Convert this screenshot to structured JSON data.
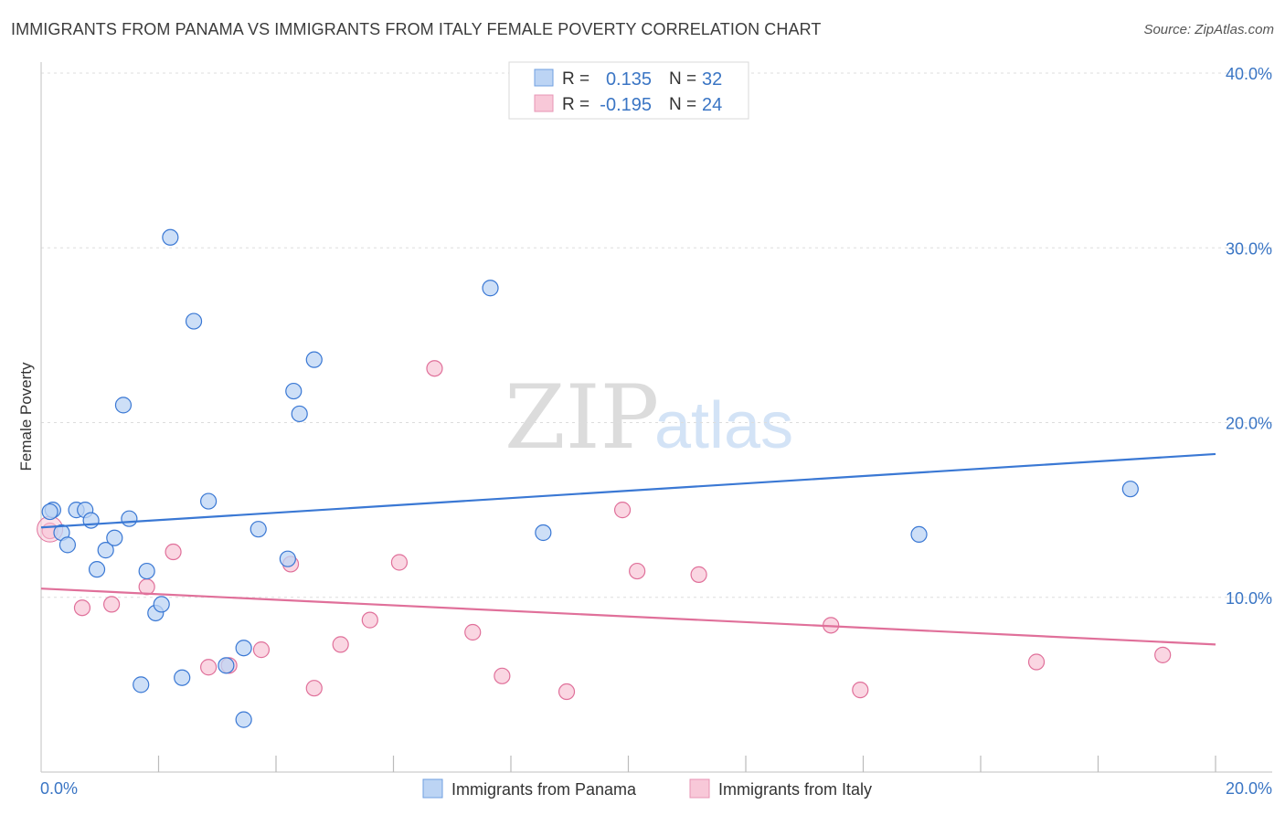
{
  "title": "IMMIGRANTS FROM PANAMA VS IMMIGRANTS FROM ITALY FEMALE POVERTY CORRELATION CHART",
  "source": "Source: ZipAtlas.com",
  "watermark": {
    "part1": "ZIP",
    "part2": "atlas"
  },
  "colors": {
    "panama": "#3a78d4",
    "panama_fill": "#bcd4f4",
    "italy": "#e0709a",
    "italy_fill": "#f8c8d8",
    "grid": "#dddddd",
    "tick_text": "#3a75c4"
  },
  "legend": {
    "r_label": "R =",
    "n_label": "N =",
    "rows": [
      {
        "r": "0.135",
        "n": "32"
      },
      {
        "r": "-0.195",
        "n": "24"
      }
    ]
  },
  "chart_data": {
    "type": "scatter",
    "title": "IMMIGRANTS FROM PANAMA VS IMMIGRANTS FROM ITALY FEMALE POVERTY CORRELATION CHART",
    "xlabel": "",
    "ylabel": "Female Poverty",
    "xlim": [
      0,
      20
    ],
    "ylim": [
      0,
      40
    ],
    "x_tick_labels": [
      "0.0%",
      "20.0%"
    ],
    "y_ticks": [
      10,
      20,
      30,
      40
    ],
    "y_tick_labels": [
      "10.0%",
      "20.0%",
      "30.0%",
      "40.0%"
    ],
    "grid": true,
    "series": [
      {
        "name": "Immigrants from Panama",
        "r": 0.135,
        "n": 32,
        "trend": {
          "x0": 0,
          "y0": 14.0,
          "x1": 20,
          "y1": 18.2
        },
        "points": [
          [
            0.2,
            15.0
          ],
          [
            0.15,
            14.9
          ],
          [
            0.35,
            13.7
          ],
          [
            0.45,
            13.0
          ],
          [
            0.6,
            15.0
          ],
          [
            0.75,
            15.0
          ],
          [
            0.85,
            14.4
          ],
          [
            0.95,
            11.6
          ],
          [
            1.1,
            12.7
          ],
          [
            1.25,
            13.4
          ],
          [
            1.5,
            14.5
          ],
          [
            1.4,
            21.0
          ],
          [
            1.7,
            5.0
          ],
          [
            1.8,
            11.5
          ],
          [
            1.95,
            9.1
          ],
          [
            2.05,
            9.6
          ],
          [
            2.2,
            30.6
          ],
          [
            2.4,
            5.4
          ],
          [
            2.6,
            25.8
          ],
          [
            2.85,
            15.5
          ],
          [
            3.15,
            6.1
          ],
          [
            3.45,
            7.1
          ],
          [
            3.45,
            3.0
          ],
          [
            3.7,
            13.9
          ],
          [
            4.2,
            12.2
          ],
          [
            4.3,
            21.8
          ],
          [
            4.4,
            20.5
          ],
          [
            4.65,
            23.6
          ],
          [
            7.65,
            27.7
          ],
          [
            8.55,
            13.7
          ],
          [
            14.95,
            13.6
          ],
          [
            18.55,
            16.2
          ]
        ]
      },
      {
        "name": "Immigrants from Italy",
        "r": -0.195,
        "n": 24,
        "trend": {
          "x0": 0,
          "y0": 10.5,
          "x1": 20,
          "y1": 7.3
        },
        "points": [
          [
            0.15,
            13.8
          ],
          [
            0.7,
            9.4
          ],
          [
            1.2,
            9.6
          ],
          [
            1.8,
            10.6
          ],
          [
            2.25,
            12.6
          ],
          [
            2.85,
            6.0
          ],
          [
            3.2,
            6.1
          ],
          [
            3.75,
            7.0
          ],
          [
            4.25,
            11.9
          ],
          [
            4.65,
            4.8
          ],
          [
            5.1,
            7.3
          ],
          [
            5.6,
            8.7
          ],
          [
            6.1,
            12.0
          ],
          [
            6.7,
            23.1
          ],
          [
            7.35,
            8.0
          ],
          [
            7.85,
            5.5
          ],
          [
            8.95,
            4.6
          ],
          [
            9.9,
            15.0
          ],
          [
            10.15,
            11.5
          ],
          [
            11.2,
            11.3
          ],
          [
            13.45,
            8.4
          ],
          [
            13.95,
            4.7
          ],
          [
            16.95,
            6.3
          ],
          [
            19.1,
            6.7
          ]
        ]
      }
    ]
  }
}
